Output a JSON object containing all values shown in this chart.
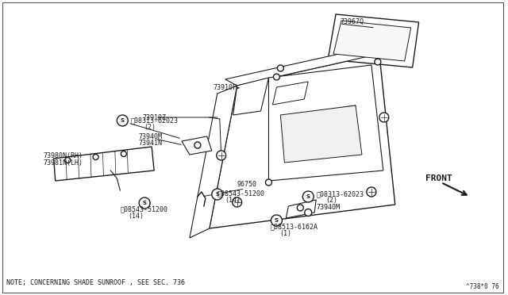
{
  "bg_color": "#FFFFFF",
  "line_color": "#1a1a1a",
  "text_color": "#1a1a1a",
  "figure_width": 6.4,
  "figure_height": 3.72,
  "dpi": 100,
  "note_text": "NOTE; CONCERNING SHADE SUNROOF , SEE SEC. 736",
  "page_ref": "^738*0 76",
  "front_label": "FRONT"
}
